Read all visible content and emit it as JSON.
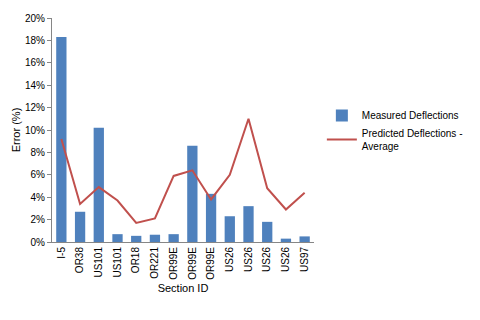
{
  "chart_data": {
    "type": "bar",
    "x_label": "Section ID",
    "y_label": "Error (%)",
    "categories": [
      "I-5",
      "OR38",
      "US101",
      "US101",
      "OR18",
      "OR221",
      "OR99E",
      "OR99E",
      "OR99E",
      "US26",
      "US26",
      "US26",
      "US26",
      "US97"
    ],
    "series": [
      {
        "name": "Measured Deflections",
        "type": "bar",
        "color": "#4f81bd",
        "values": [
          18.3,
          2.7,
          10.2,
          0.7,
          0.55,
          0.65,
          0.7,
          8.6,
          4.3,
          2.3,
          3.2,
          1.8,
          0.3,
          0.5
        ]
      },
      {
        "name": "Predicted Deflections - Average",
        "type": "line",
        "color": "#c0504d",
        "values": [
          9.2,
          3.4,
          4.9,
          3.7,
          1.7,
          2.1,
          5.9,
          6.4,
          3.8,
          6.0,
          11.0,
          4.8,
          2.9,
          4.4
        ]
      }
    ],
    "ylim": [
      0,
      20
    ],
    "yticks": [
      {
        "value": 0,
        "label": "0%"
      },
      {
        "value": 2,
        "label": "2%"
      },
      {
        "value": 4,
        "label": "4%"
      },
      {
        "value": 6,
        "label": "6%"
      },
      {
        "value": 8,
        "label": "8%"
      },
      {
        "value": 10,
        "label": "10%"
      },
      {
        "value": 12,
        "label": "12%"
      },
      {
        "value": 14,
        "label": "14%"
      },
      {
        "value": 16,
        "label": "16%"
      },
      {
        "value": 18,
        "label": "18%"
      },
      {
        "value": 20,
        "label": "20%"
      }
    ],
    "grid": false,
    "legend": "right"
  }
}
